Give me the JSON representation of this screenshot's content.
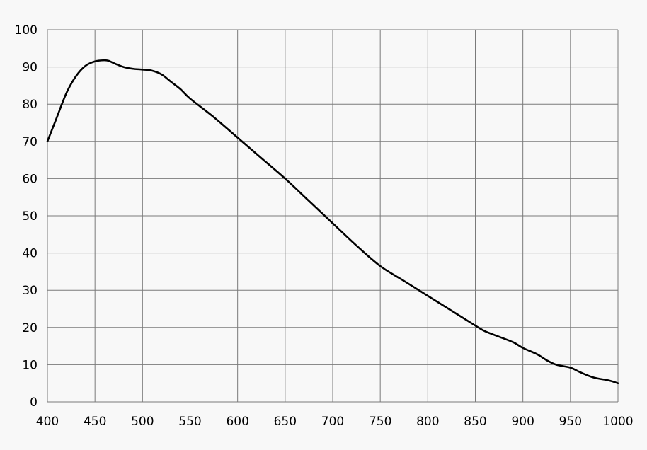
{
  "chart_data": {
    "type": "line",
    "title": "",
    "xlabel": "",
    "ylabel": "",
    "xlim": [
      400,
      1000
    ],
    "ylim": [
      0,
      100
    ],
    "x_ticks": [
      400,
      450,
      500,
      550,
      600,
      650,
      700,
      750,
      800,
      850,
      900,
      950,
      1000
    ],
    "y_ticks": [
      0,
      10,
      20,
      30,
      40,
      50,
      60,
      70,
      80,
      90,
      100
    ],
    "x_tick_labels": [
      "400",
      "450",
      "500",
      "550",
      "600",
      "650",
      "700",
      "750",
      "800",
      "850",
      "900",
      "950",
      "1000"
    ],
    "y_tick_labels": [
      "0",
      "10",
      "20",
      "30",
      "40",
      "50",
      "60",
      "70",
      "80",
      "90",
      "100"
    ],
    "grid": true,
    "legend": "none",
    "line_color": "#000000",
    "series": [
      {
        "x": [
          400,
          410,
          420,
          430,
          440,
          450,
          460,
          465,
          470,
          480,
          490,
          500,
          510,
          520,
          530,
          540,
          550,
          575,
          600,
          625,
          650,
          675,
          700,
          725,
          750,
          775,
          800,
          825,
          850,
          860,
          875,
          890,
          900,
          915,
          925,
          935,
          950,
          960,
          975,
          990,
          1000
        ],
        "values": [
          70,
          76.5,
          83,
          87.5,
          90.3,
          91.5,
          91.8,
          91.6,
          91,
          90,
          89.5,
          89.3,
          89,
          88,
          86,
          84,
          81.5,
          76.5,
          71,
          65.5,
          60,
          54,
          48,
          42,
          36.5,
          32.5,
          28.5,
          24.5,
          20.5,
          19,
          17.5,
          16,
          14.5,
          12.8,
          11.2,
          10,
          9.2,
          8,
          6.5,
          5.8,
          5
        ]
      }
    ]
  }
}
